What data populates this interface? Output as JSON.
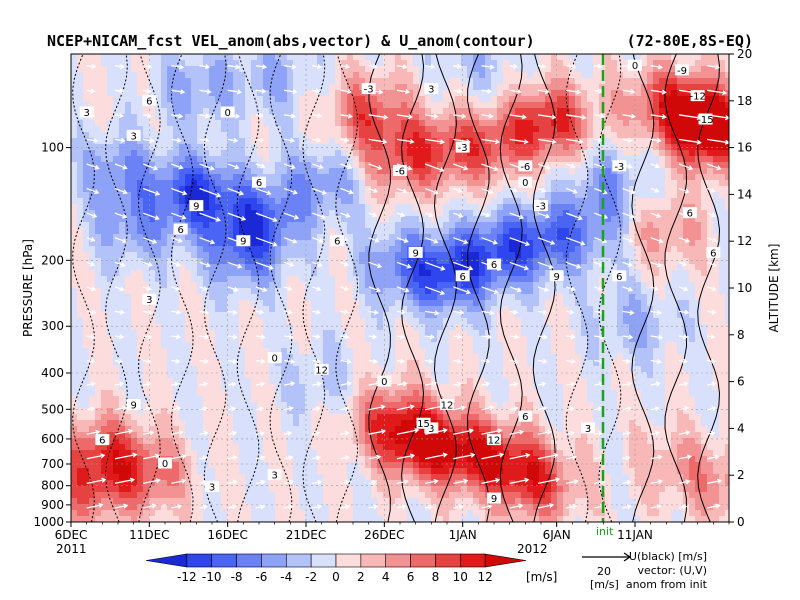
{
  "chart_data": {
    "type": "heatmap",
    "title": "NCEP+NICAM_fcst VEL_anom(abs,vector) & U_anom(contour)",
    "region": "(72-80E,8S-EQ)",
    "ylabel_left": "PRESSURE [hPa]",
    "ylabel_right": "ALTITUDE [km]",
    "x_ticks": [
      "6DEC",
      "11DEC",
      "16DEC",
      "21DEC",
      "26DEC",
      "1JAN",
      "6JAN",
      "11JAN"
    ],
    "x_year_left": "2011",
    "x_year_right": "2012",
    "y_ticks_pressure": [
      "100",
      "200",
      "300",
      "400",
      "500",
      "600",
      "700",
      "800",
      "900",
      "1000"
    ],
    "y_ticks_altitude": [
      "0",
      "2",
      "4",
      "6",
      "8",
      "10",
      "12",
      "14",
      "16",
      "18",
      "20"
    ],
    "init_label": "init",
    "colorbar": {
      "levels": [
        "-12",
        "-10",
        "-8",
        "-6",
        "-4",
        "-2",
        "0",
        "2",
        "4",
        "6",
        "8",
        "10",
        "12"
      ],
      "unit": "[m/s]",
      "colors": [
        "#1a28d6",
        "#2f46ef",
        "#4a64f5",
        "#6a82f6",
        "#8ea2f8",
        "#b4c2fa",
        "#d8e0fc",
        "#fcdcdc",
        "#f8b8b8",
        "#f39292",
        "#ee6a6a",
        "#e74242",
        "#e01a1a",
        "#d10808"
      ]
    },
    "vector_key": {
      "value": "20",
      "unit": "[m/s]"
    },
    "legend_lines": [
      "U(black) [m/s]",
      "vector: (U,V)",
      "anom from init"
    ],
    "contour_labels": [
      "3",
      "6",
      "3",
      "0",
      "-3",
      "3",
      "9",
      "6",
      "9",
      "-6",
      "-3",
      "0",
      "-6",
      "-3",
      "6",
      "6",
      "9",
      "6",
      "6",
      "9",
      "3",
      "0",
      "12",
      "0",
      "3",
      "6",
      "12",
      "15",
      "12",
      "9",
      "6",
      "0",
      "3",
      "3",
      "9",
      "3",
      "6",
      "0",
      "-9",
      "-12",
      "-15",
      "-3",
      "6",
      "6"
    ],
    "blobs": [
      {
        "d": 3,
        "z": 15.0,
        "v": -6
      },
      {
        "d": 8,
        "z": 14.0,
        "v": -11
      },
      {
        "d": 12,
        "z": 13.0,
        "v": -8
      },
      {
        "d": 11,
        "z": 11.5,
        "v": -7
      },
      {
        "d": 4,
        "z": 12.5,
        "v": -5
      },
      {
        "d": 16,
        "z": 14.5,
        "v": -6
      },
      {
        "d": 21,
        "z": 11.0,
        "v": -6
      },
      {
        "d": 24,
        "z": 10.5,
        "v": -9
      },
      {
        "d": 27,
        "z": 11.5,
        "v": -8
      },
      {
        "d": 30,
        "z": 12.0,
        "v": -7
      },
      {
        "d": 33,
        "z": 12.5,
        "v": -5
      },
      {
        "d": 34.5,
        "z": 14.5,
        "v": -5
      },
      {
        "d": 8,
        "z": 18.5,
        "v": -5
      },
      {
        "d": 13,
        "z": 19.0,
        "v": -4
      },
      {
        "d": 26,
        "z": 19.5,
        "v": -3
      },
      {
        "d": 19,
        "z": 17.5,
        "v": 8
      },
      {
        "d": 21,
        "z": 15.5,
        "v": 7
      },
      {
        "d": 24,
        "z": 16.0,
        "v": 6
      },
      {
        "d": 27,
        "z": 16.0,
        "v": 6
      },
      {
        "d": 30,
        "z": 17.0,
        "v": 5
      },
      {
        "d": 31,
        "z": 17.2,
        "v": 6
      },
      {
        "d": 37.5,
        "z": 18.0,
        "v": 6
      },
      {
        "d": 40,
        "z": 17.5,
        "v": 9
      },
      {
        "d": 41,
        "z": 16.5,
        "v": 11
      },
      {
        "d": 38,
        "z": 12.5,
        "v": 5
      },
      {
        "d": 20,
        "z": 4.5,
        "v": 6
      },
      {
        "d": 22,
        "z": 3.5,
        "v": 11
      },
      {
        "d": 25,
        "z": 3.0,
        "v": 9
      },
      {
        "d": 28,
        "z": 2.5,
        "v": 8
      },
      {
        "d": 30,
        "z": 1.5,
        "v": 7
      },
      {
        "d": 2,
        "z": 3.0,
        "v": 8
      },
      {
        "d": 5,
        "z": 2.0,
        "v": 7
      },
      {
        "d": 1,
        "z": 1.2,
        "v": 6
      },
      {
        "d": 38.5,
        "z": 2.5,
        "v": 4
      },
      {
        "d": 42,
        "z": 1.5,
        "v": 5
      },
      {
        "d": 36,
        "z": 8.5,
        "v": -4
      },
      {
        "d": 16,
        "z": 6.0,
        "v": -3
      }
    ]
  }
}
